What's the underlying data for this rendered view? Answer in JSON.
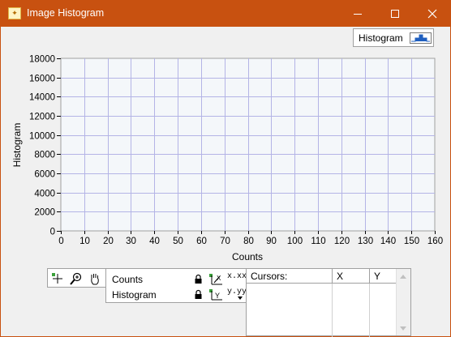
{
  "window": {
    "title": "Image Histogram",
    "minimize_label": "–",
    "maximize_label": "☐",
    "close_label": "✕"
  },
  "plot_legend": {
    "label": "Histogram"
  },
  "chart_data": {
    "type": "bar",
    "xlabel": "Counts",
    "ylabel": "Histogram",
    "xlim": [
      0,
      160
    ],
    "ylim": [
      0,
      18000
    ],
    "x_ticks": [
      0,
      10,
      20,
      30,
      40,
      50,
      60,
      70,
      80,
      90,
      100,
      110,
      120,
      130,
      140,
      150,
      160
    ],
    "y_ticks": [
      0,
      2000,
      4000,
      6000,
      8000,
      10000,
      12000,
      14000,
      16000,
      18000
    ],
    "grid": true,
    "series": [
      {
        "name": "Histogram",
        "values": []
      }
    ],
    "colors": {
      "plot_background": "#f4f7fa",
      "grid": "#b4b4e6"
    }
  },
  "scale_legend": {
    "rows": [
      {
        "name": "Counts",
        "format_label": "x.xx"
      },
      {
        "name": "Histogram",
        "format_label": "y.yy"
      }
    ]
  },
  "cursor_legend": {
    "columns": [
      "Cursors:",
      "X",
      "Y"
    ]
  },
  "colors": {
    "title_bar": "#c85110",
    "window_background": "#f0f0f0"
  }
}
